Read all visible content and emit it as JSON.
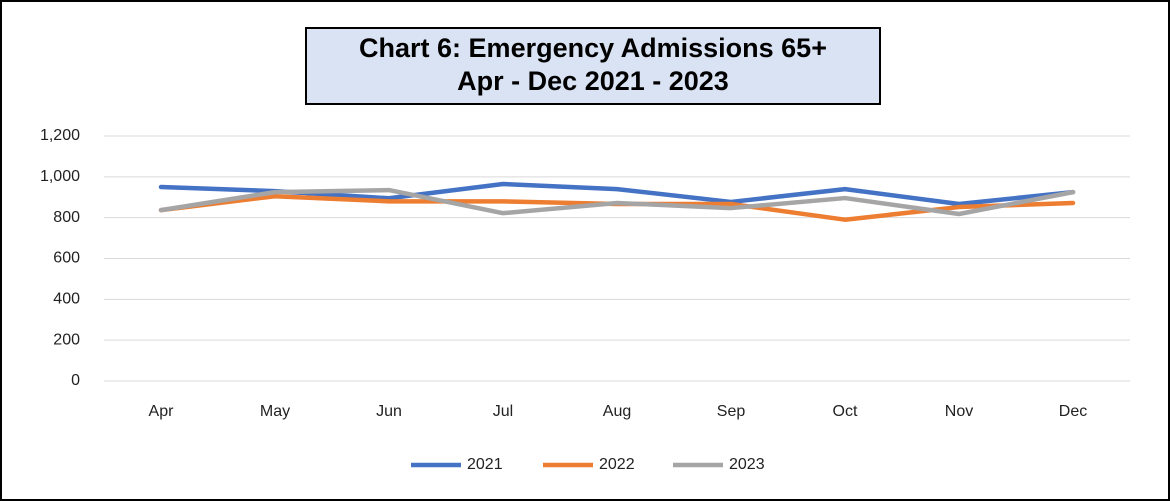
{
  "chart_data": {
    "type": "line",
    "title": [
      "Chart 6: Emergency Admissions 65+",
      "Apr - Dec 2021 - 2023"
    ],
    "categories": [
      "Apr",
      "May",
      "Jun",
      "Jul",
      "Aug",
      "Sep",
      "Oct",
      "Nov",
      "Dec"
    ],
    "series": [
      {
        "name": "2021",
        "color": "#4472c4",
        "values": [
          950,
          930,
          895,
          965,
          940,
          877,
          940,
          867,
          925
        ]
      },
      {
        "name": "2022",
        "color": "#ed7d31",
        "values": [
          837,
          905,
          880,
          880,
          867,
          867,
          790,
          852,
          872
        ]
      },
      {
        "name": "2023",
        "color": "#a5a5a5",
        "values": [
          837,
          925,
          935,
          822,
          872,
          847,
          896,
          818,
          925
        ]
      }
    ],
    "ylim": [
      0,
      1200
    ],
    "yticks": [
      0,
      200,
      400,
      600,
      800,
      {
        "value": 1000,
        "label": "1,000"
      },
      {
        "value": 1200,
        "label": "1,200"
      }
    ],
    "grid": true,
    "legend": "bottom"
  }
}
